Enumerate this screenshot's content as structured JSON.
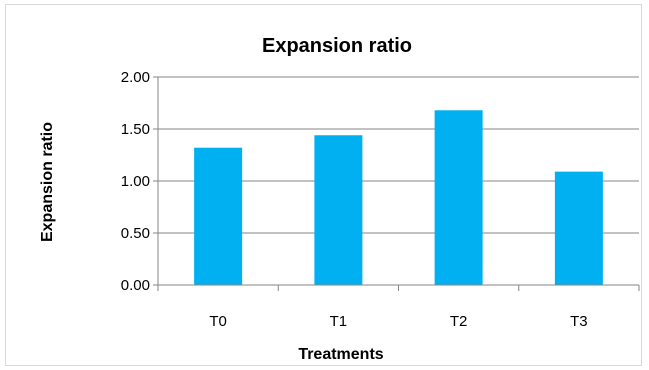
{
  "chart_data": {
    "type": "bar",
    "title": "Expansion ratio",
    "xlabel": "Treatments",
    "ylabel": "Expansion ratio",
    "categories": [
      "T0",
      "T1",
      "T2",
      "T3"
    ],
    "values": [
      1.32,
      1.44,
      1.68,
      1.09
    ],
    "ylim": [
      0,
      2
    ],
    "yticks": [
      "0.00",
      "0.50",
      "1.00",
      "1.50",
      "2.00"
    ],
    "ytick_values": [
      0,
      0.5,
      1,
      1.5,
      2
    ],
    "grid": true,
    "legend": "none",
    "colors": {
      "bar": "#00b0f0",
      "grid": "#868686",
      "axis": "#868686"
    }
  }
}
